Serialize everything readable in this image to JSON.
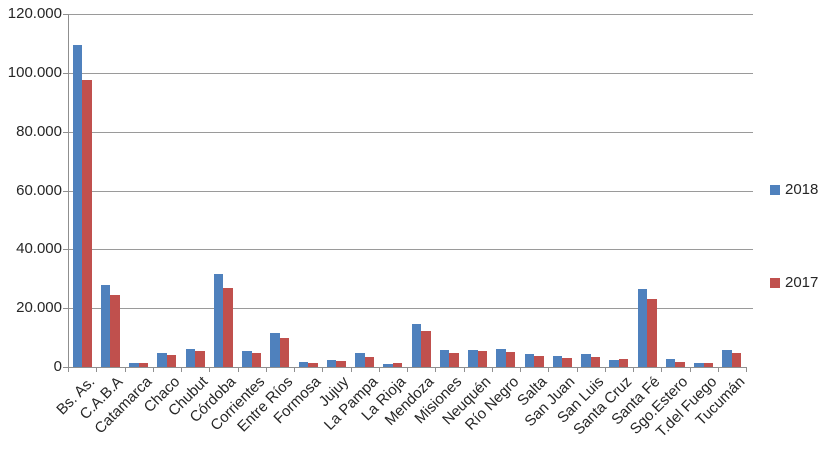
{
  "chart_data": {
    "type": "bar",
    "title": "",
    "xlabel": "",
    "ylabel": "",
    "categories": [
      "Bs. As.",
      "C.A.B.A",
      "Catamarca",
      "Chaco",
      "Chubut",
      "Córdoba",
      "Corrientes",
      "Entre Ríos",
      "Formosa",
      "Jujuy",
      "La Pampa",
      "La Rioja",
      "Mendoza",
      "Misiones",
      "Neuquén",
      "Río Negro",
      "Salta",
      "San Juan",
      "San Luis",
      "Santa Cruz",
      "Santa Fé",
      "Sgo.Estero",
      "T.del Fuego",
      "Tucumán"
    ],
    "series": [
      {
        "name": "2018",
        "color": "#4f81bd",
        "values": [
          109500,
          28000,
          1300,
          4800,
          6100,
          31700,
          5600,
          11400,
          1700,
          2300,
          4600,
          1100,
          14700,
          5700,
          5900,
          6200,
          4300,
          3700,
          4500,
          2300,
          26400,
          2600,
          1400,
          5800
        ]
      },
      {
        "name": "2017",
        "color": "#c0504d",
        "values": [
          97500,
          24500,
          1500,
          4200,
          5600,
          26700,
          4600,
          10000,
          1500,
          1900,
          3500,
          1300,
          12300,
          4800,
          5400,
          5000,
          3700,
          3100,
          3400,
          2800,
          23200,
          1600,
          1500,
          4600
        ]
      }
    ],
    "ylim": [
      0,
      120000
    ],
    "yticks": [
      {
        "label": "0",
        "value": 0
      },
      {
        "label": "20.000",
        "value": 20000
      },
      {
        "label": "40.000",
        "value": 40000
      },
      {
        "label": "60.000",
        "value": 60000
      },
      {
        "label": "80.000",
        "value": 80000
      },
      {
        "label": "100.000",
        "value": 100000
      },
      {
        "label": "120.000",
        "value": 120000
      }
    ],
    "grid": true,
    "legend_position": "right",
    "axis_color": "#8f8f8f",
    "gridline_color": "#9a9a9a",
    "text_color": "#262626"
  }
}
